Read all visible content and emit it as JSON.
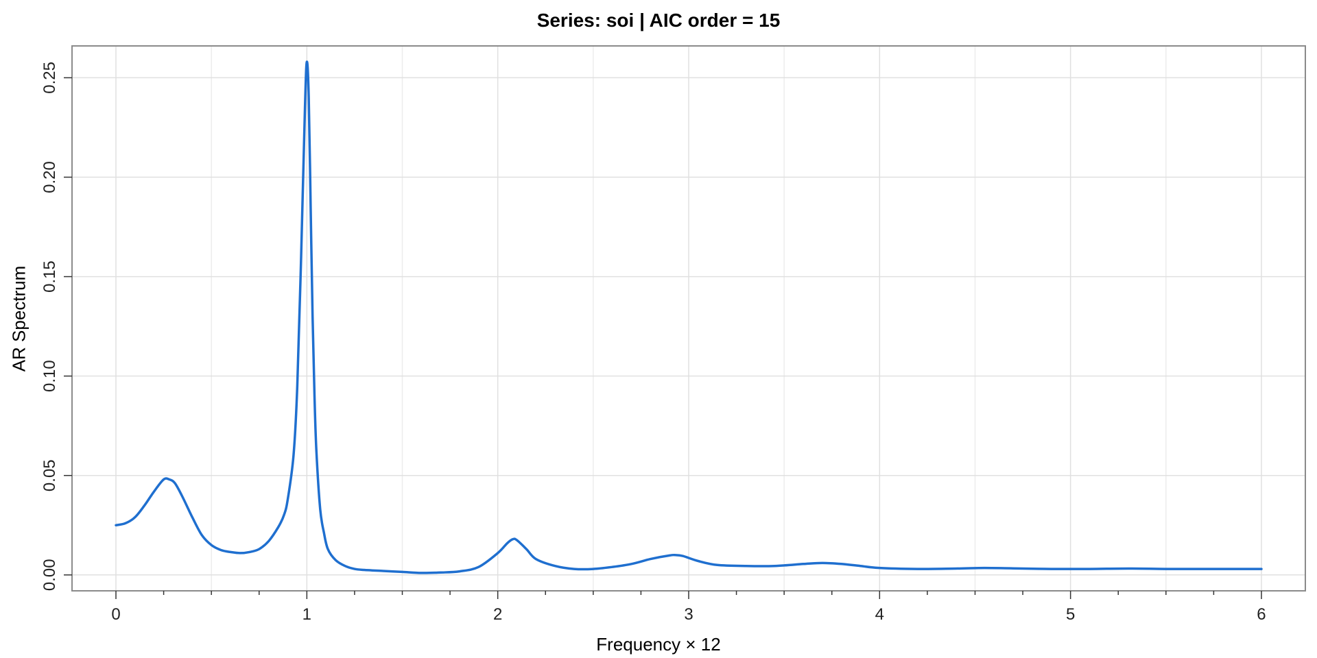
{
  "chart_data": {
    "type": "line",
    "title": "Series: soi  |  AIC order = 15",
    "xlabel": "Frequency × 12",
    "ylabel": "AR Spectrum",
    "xlim": [
      -0.23,
      6.23
    ],
    "ylim": [
      -0.008,
      0.266
    ],
    "x_ticks": [
      0,
      1,
      2,
      3,
      4,
      5,
      6
    ],
    "x_tick_labels": [
      "0",
      "1",
      "2",
      "3",
      "4",
      "5",
      "6"
    ],
    "y_ticks": [
      0.0,
      0.05,
      0.1,
      0.15,
      0.2,
      0.25
    ],
    "y_tick_labels": [
      "0.00",
      "0.05",
      "0.10",
      "0.15",
      "0.20",
      "0.25"
    ],
    "grid": true,
    "line_color": "#1f6fcf",
    "series": [
      {
        "x": [
          0.0,
          0.05,
          0.1,
          0.15,
          0.2,
          0.25,
          0.28,
          0.31,
          0.35,
          0.4,
          0.45,
          0.5,
          0.55,
          0.6,
          0.65,
          0.7,
          0.75,
          0.8,
          0.85,
          0.88,
          0.9,
          0.93,
          0.95,
          0.97,
          0.99,
          1.0,
          1.01,
          1.02,
          1.03,
          1.04,
          1.05,
          1.07,
          1.09,
          1.11,
          1.15,
          1.2,
          1.25,
          1.3,
          1.4,
          1.5,
          1.6,
          1.7,
          1.8,
          1.9,
          2.0,
          2.05,
          2.08,
          2.1,
          2.15,
          2.2,
          2.3,
          2.4,
          2.5,
          2.6,
          2.7,
          2.8,
          2.9,
          2.93,
          2.97,
          3.05,
          3.15,
          3.3,
          3.45,
          3.6,
          3.7,
          3.8,
          3.9,
          4.0,
          4.2,
          4.4,
          4.55,
          4.7,
          4.9,
          5.1,
          5.3,
          5.5,
          5.7,
          5.9,
          6.0
        ],
        "y": [
          0.025,
          0.026,
          0.029,
          0.035,
          0.042,
          0.048,
          0.048,
          0.046,
          0.039,
          0.029,
          0.02,
          0.015,
          0.0125,
          0.0115,
          0.011,
          0.0115,
          0.013,
          0.017,
          0.024,
          0.03,
          0.038,
          0.06,
          0.095,
          0.16,
          0.235,
          0.258,
          0.24,
          0.185,
          0.13,
          0.09,
          0.062,
          0.033,
          0.021,
          0.013,
          0.0075,
          0.0045,
          0.003,
          0.0025,
          0.002,
          0.0015,
          0.001,
          0.0012,
          0.0018,
          0.004,
          0.011,
          0.016,
          0.018,
          0.0175,
          0.013,
          0.008,
          0.0045,
          0.003,
          0.003,
          0.004,
          0.0055,
          0.008,
          0.0098,
          0.01,
          0.0095,
          0.007,
          0.005,
          0.0045,
          0.0045,
          0.0055,
          0.006,
          0.0055,
          0.0045,
          0.0035,
          0.003,
          0.0032,
          0.0035,
          0.0033,
          0.003,
          0.003,
          0.0032,
          0.003,
          0.003,
          0.003,
          0.003
        ]
      }
    ]
  }
}
